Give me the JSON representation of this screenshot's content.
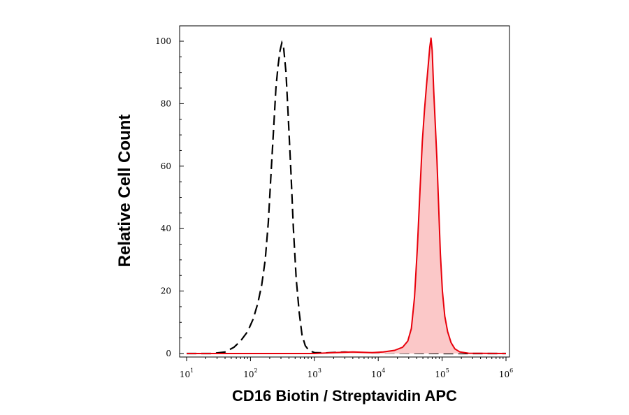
{
  "chart_data": {
    "type": "area",
    "xlabel": "CD16 Biotin / Streptavidin APC",
    "ylabel": "Relative Cell Count",
    "x_scale": "log",
    "xlim": [
      10,
      1000000
    ],
    "ylim": [
      0,
      100
    ],
    "x_ticks": [
      {
        "base": "10",
        "exp": "1",
        "value": 10
      },
      {
        "base": "10",
        "exp": "2",
        "value": 100
      },
      {
        "base": "10",
        "exp": "3",
        "value": 1000
      },
      {
        "base": "10",
        "exp": "4",
        "value": 10000
      },
      {
        "base": "10",
        "exp": "5",
        "value": 100000
      },
      {
        "base": "10",
        "exp": "6",
        "value": 1000000
      }
    ],
    "y_ticks": [
      "0",
      "20",
      "40",
      "60",
      "80",
      "100"
    ],
    "grid": false,
    "series": [
      {
        "style": "dashed",
        "color": "#000000",
        "points": [
          [
            10,
            0
          ],
          [
            25,
            0
          ],
          [
            40,
            0.5
          ],
          [
            55,
            2
          ],
          [
            70,
            4
          ],
          [
            90,
            7
          ],
          [
            110,
            11
          ],
          [
            130,
            16
          ],
          [
            150,
            22
          ],
          [
            170,
            30
          ],
          [
            190,
            42
          ],
          [
            210,
            58
          ],
          [
            230,
            72
          ],
          [
            250,
            85
          ],
          [
            270,
            92
          ],
          [
            290,
            97
          ],
          [
            310,
            99.5
          ],
          [
            330,
            98
          ],
          [
            360,
            90
          ],
          [
            390,
            76
          ],
          [
            430,
            58
          ],
          [
            470,
            40
          ],
          [
            520,
            24
          ],
          [
            580,
            13
          ],
          [
            640,
            6
          ],
          [
            720,
            2.5
          ],
          [
            820,
            1
          ],
          [
            1000,
            0.3
          ],
          [
            1500,
            0.2
          ],
          [
            3000,
            0.5
          ],
          [
            5000,
            0.3
          ],
          [
            10000,
            0.2
          ],
          [
            100000,
            0
          ],
          [
            1000000,
            0
          ]
        ]
      },
      {
        "style": "filled",
        "color": "#e8000b",
        "fill": "#fbc8c8",
        "points": [
          [
            10,
            0
          ],
          [
            1000,
            0
          ],
          [
            2000,
            0.3
          ],
          [
            4000,
            0.5
          ],
          [
            8000,
            0.3
          ],
          [
            12000,
            0.5
          ],
          [
            18000,
            1
          ],
          [
            24000,
            2
          ],
          [
            29000,
            4
          ],
          [
            33000,
            8
          ],
          [
            37000,
            18
          ],
          [
            41000,
            34
          ],
          [
            45000,
            52
          ],
          [
            49000,
            68
          ],
          [
            53000,
            78
          ],
          [
            57000,
            86
          ],
          [
            61000,
            93
          ],
          [
            64000,
            98
          ],
          [
            67000,
            101
          ],
          [
            70000,
            97
          ],
          [
            74000,
            84
          ],
          [
            78000,
            74
          ],
          [
            83000,
            62
          ],
          [
            88000,
            48
          ],
          [
            94000,
            32
          ],
          [
            101000,
            20
          ],
          [
            110000,
            12
          ],
          [
            122000,
            7
          ],
          [
            138000,
            3.5
          ],
          [
            158000,
            1.5
          ],
          [
            190000,
            0.5
          ],
          [
            260000,
            0.1
          ],
          [
            1000000,
            0
          ]
        ]
      }
    ]
  }
}
